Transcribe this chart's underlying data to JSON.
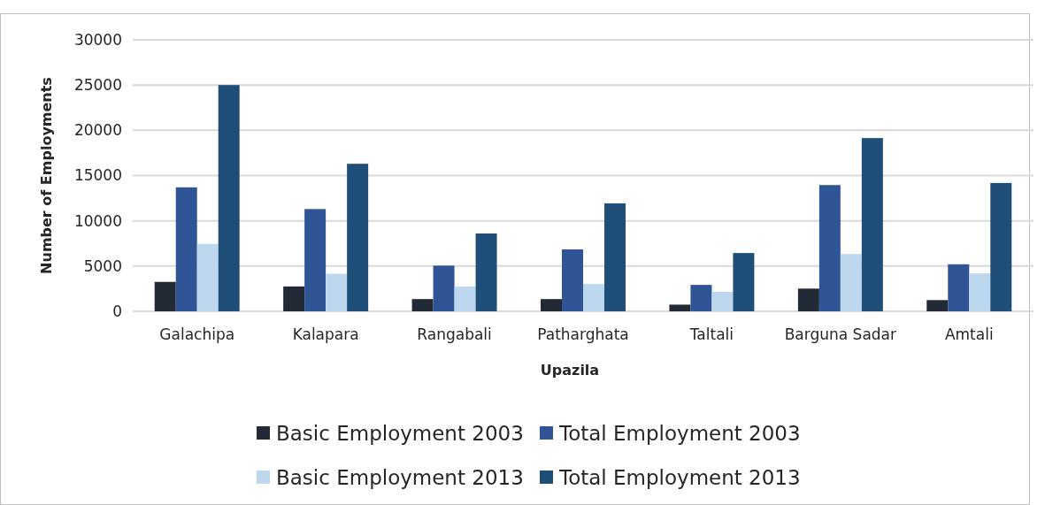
{
  "chart_data": {
    "type": "bar",
    "xlabel": "Upazila",
    "ylabel": "Number of Employments",
    "categories": [
      "Galachipa",
      "Kalapara",
      "Rangabali",
      "Patharghata",
      "Taltali",
      "Barguna Sadar",
      "Amtali"
    ],
    "series": [
      {
        "name": "Basic Employment 2003",
        "color": "#222a35",
        "values": [
          3250,
          2750,
          1350,
          1350,
          740,
          2510,
          1240
        ]
      },
      {
        "name": "Total Employment 2003",
        "color": "#2f5597",
        "values": [
          13700,
          11300,
          5050,
          6840,
          2920,
          13950,
          5200
        ]
      },
      {
        "name": "Basic Employment 2013",
        "color": "#bdd7ee",
        "values": [
          7450,
          4150,
          2750,
          3020,
          2150,
          6340,
          4190
        ]
      },
      {
        "name": "Total Employment 2013",
        "color": "#1f4e79",
        "values": [
          25000,
          16300,
          8600,
          11930,
          6440,
          19140,
          14180
        ]
      }
    ],
    "ylim": [
      0,
      30000
    ],
    "yticks": [
      0,
      5000,
      10000,
      15000,
      20000,
      25000,
      30000
    ],
    "grid": "y",
    "legend": "bottom"
  }
}
